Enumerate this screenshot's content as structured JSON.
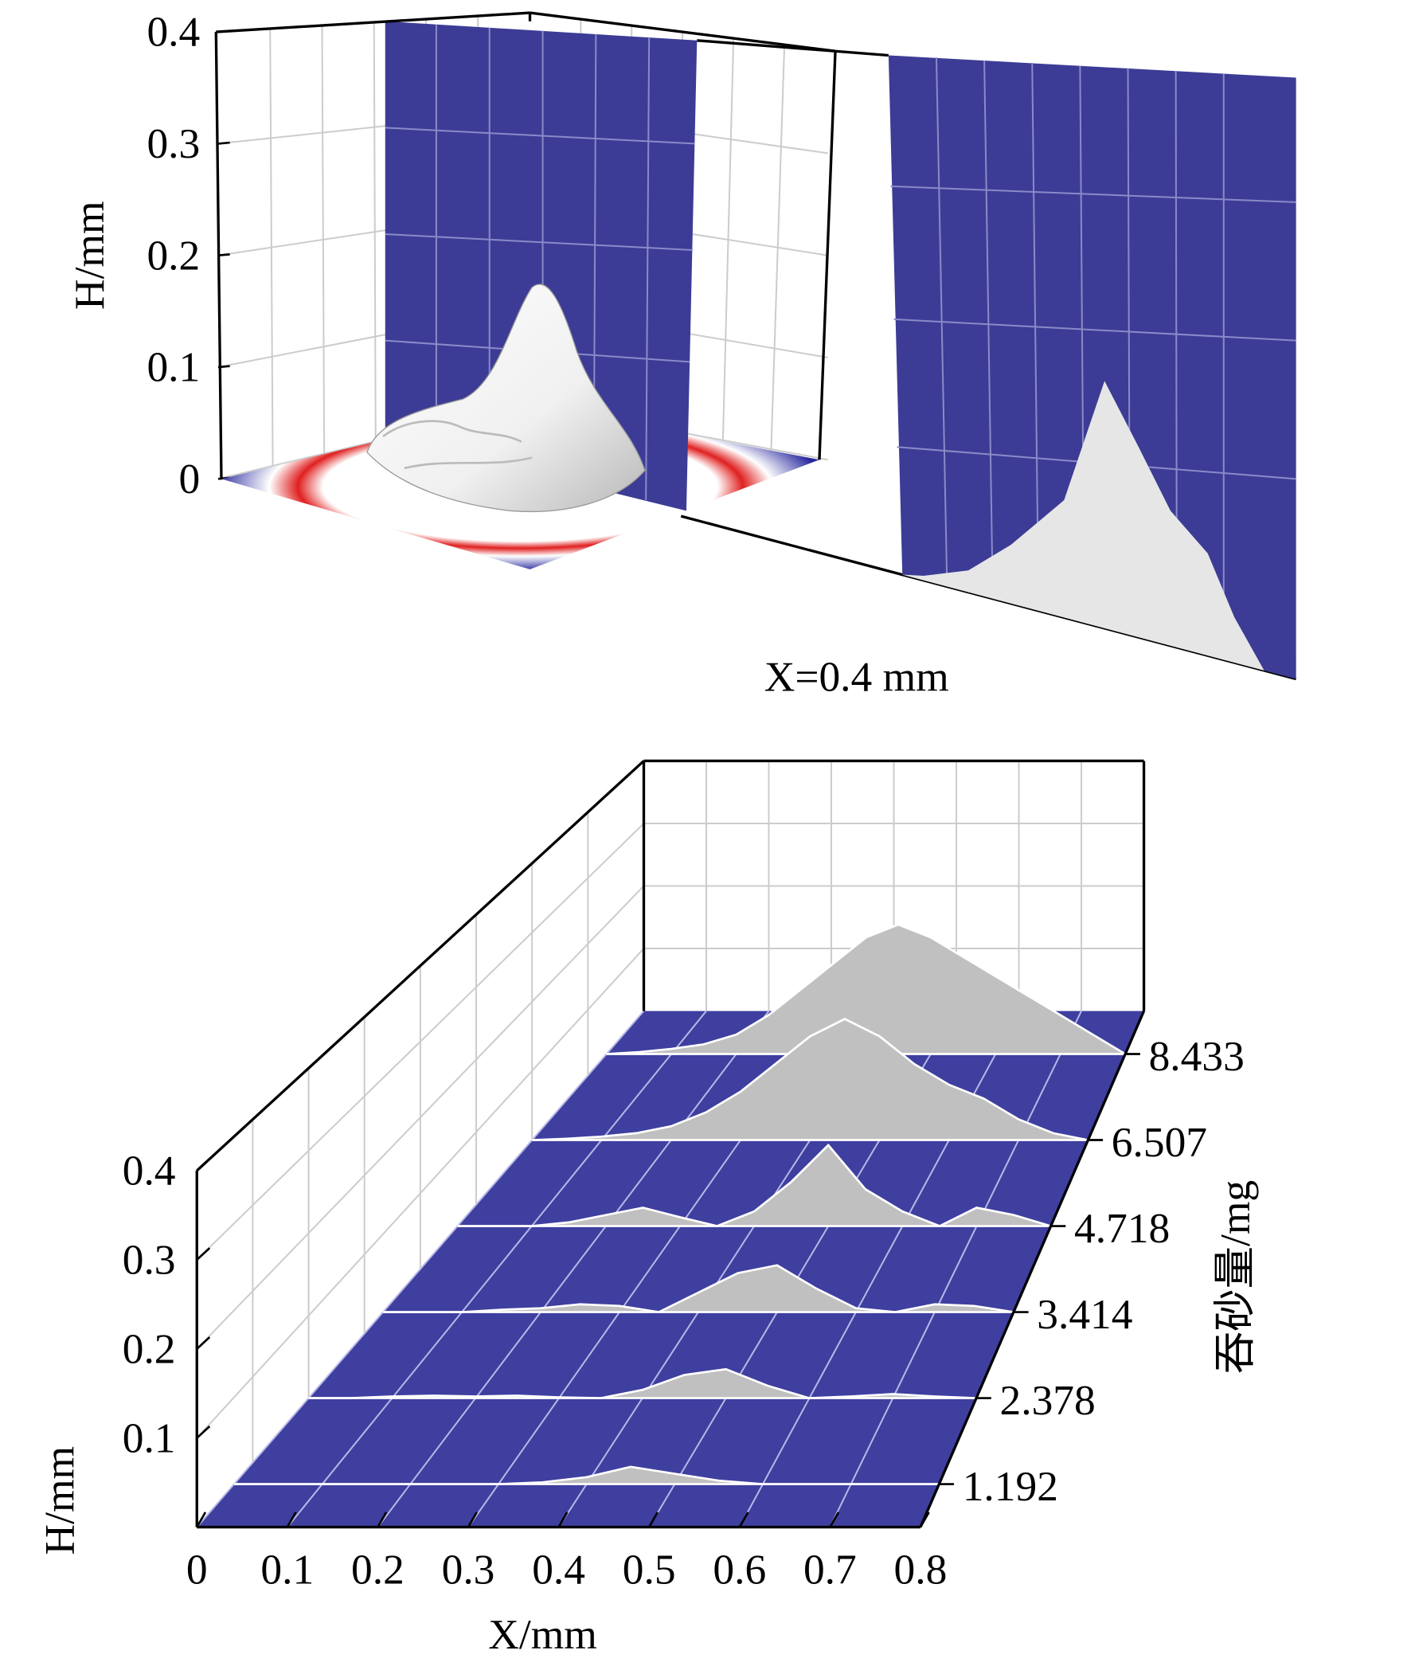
{
  "chart_data": [
    {
      "type": "surface3d",
      "ylabel": "H/mm",
      "annotation": "X=0.4 mm",
      "ylim": [
        0,
        0.4
      ],
      "yticks": [
        0,
        0.1,
        0.2,
        0.3,
        0.4
      ],
      "grid": true
    },
    {
      "type": "waterfall",
      "xlabel": "X/mm",
      "ylabel": "H/mm",
      "zlabel": "吞砂量/mg",
      "xlim": [
        0,
        0.8
      ],
      "ylim": [
        0,
        0.4
      ],
      "xticks": [
        0,
        0.1,
        0.2,
        0.3,
        0.4,
        0.5,
        0.6,
        0.7,
        0.8
      ],
      "yticks": [
        0.1,
        0.2,
        0.3,
        0.4
      ],
      "floor_color": "#3f3fa0",
      "color": "#c0c0c0",
      "grid": true,
      "x": [
        0,
        0.05,
        0.1,
        0.15,
        0.2,
        0.25,
        0.3,
        0.35,
        0.4,
        0.45,
        0.5,
        0.55,
        0.6,
        0.65,
        0.7,
        0.75,
        0.8
      ],
      "series": [
        {
          "name": "1.192",
          "values": [
            0,
            0,
            0,
            0,
            0,
            0,
            0,
            0.002,
            0.008,
            0.02,
            0.012,
            0.004,
            0,
            0,
            0,
            0,
            0
          ]
        },
        {
          "name": "2.378",
          "values": [
            0,
            0,
            0.002,
            0.003,
            0.002,
            0.003,
            0.001,
            0,
            0.01,
            0.028,
            0.035,
            0.015,
            0,
            0.002,
            0.005,
            0.002,
            0
          ]
        },
        {
          "name": "3.414",
          "values": [
            0,
            0,
            0,
            0.003,
            0.005,
            0.01,
            0.008,
            0,
            0.025,
            0.05,
            0.06,
            0.03,
            0.005,
            0,
            0.01,
            0.008,
            0
          ]
        },
        {
          "name": "4.718",
          "values": [
            0,
            0,
            0,
            0.005,
            0.015,
            0.025,
            0.012,
            0,
            0.02,
            0.06,
            0.11,
            0.05,
            0.02,
            0,
            0.025,
            0.015,
            0
          ]
        },
        {
          "name": "6.507",
          "values": [
            0,
            0.002,
            0.005,
            0.01,
            0.02,
            0.04,
            0.07,
            0.11,
            0.15,
            0.175,
            0.15,
            0.11,
            0.08,
            0.06,
            0.03,
            0.01,
            0
          ]
        },
        {
          "name": "8.433",
          "values": [
            0,
            0.003,
            0.008,
            0.015,
            0.03,
            0.06,
            0.1,
            0.14,
            0.18,
            0.2,
            0.18,
            0.15,
            0.12,
            0.09,
            0.06,
            0.03,
            0
          ]
        }
      ]
    }
  ]
}
